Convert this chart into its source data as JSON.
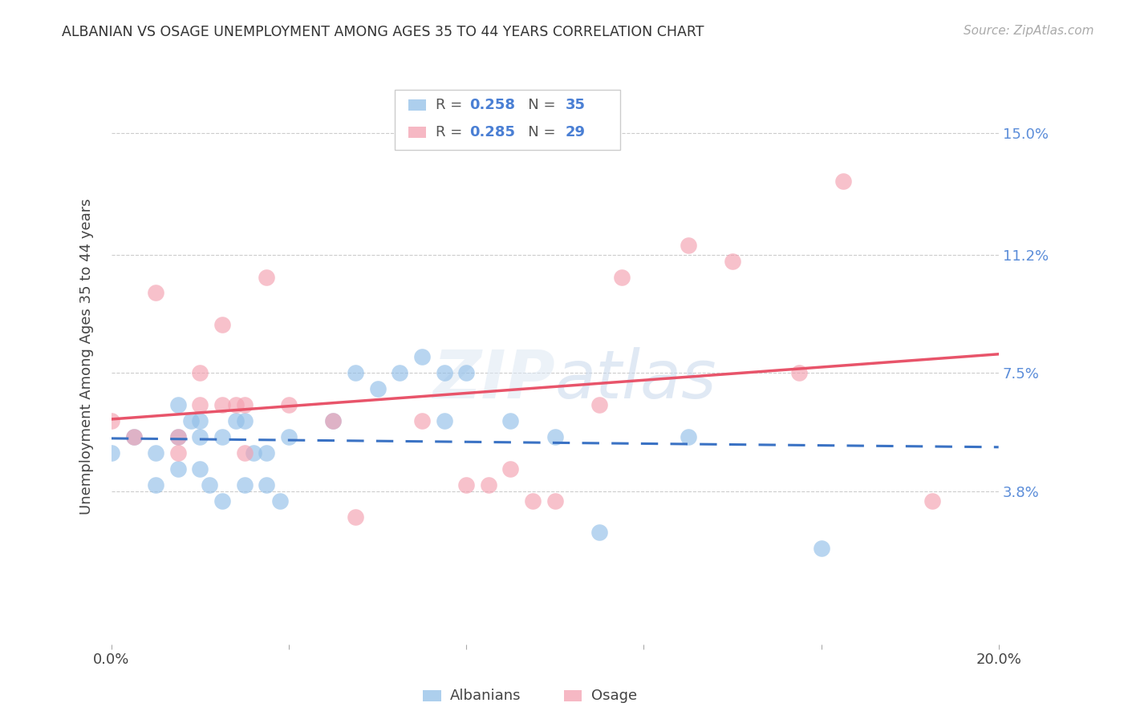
{
  "title": "ALBANIAN VS OSAGE UNEMPLOYMENT AMONG AGES 35 TO 44 YEARS CORRELATION CHART",
  "source": "Source: ZipAtlas.com",
  "ylabel": "Unemployment Among Ages 35 to 44 years",
  "xlim": [
    0.0,
    0.2
  ],
  "ylim": [
    -0.01,
    0.17
  ],
  "yticks": [
    0.038,
    0.075,
    0.112,
    0.15
  ],
  "ytick_labels": [
    "3.8%",
    "7.5%",
    "11.2%",
    "15.0%"
  ],
  "xticks": [
    0.0,
    0.04,
    0.08,
    0.12,
    0.16,
    0.2
  ],
  "xtick_labels": [
    "0.0%",
    "",
    "",
    "",
    "",
    "20.0%"
  ],
  "albanians_R": 0.258,
  "albanians_N": 35,
  "osage_R": 0.285,
  "osage_N": 29,
  "albanian_color": "#92bfe8",
  "osage_color": "#f4a0b0",
  "albanian_line_color": "#3a72c4",
  "osage_line_color": "#e8546a",
  "albanians_x": [
    0.0,
    0.005,
    0.01,
    0.01,
    0.015,
    0.015,
    0.015,
    0.018,
    0.02,
    0.02,
    0.02,
    0.022,
    0.025,
    0.025,
    0.028,
    0.03,
    0.03,
    0.032,
    0.035,
    0.035,
    0.038,
    0.04,
    0.05,
    0.055,
    0.06,
    0.065,
    0.07,
    0.075,
    0.075,
    0.08,
    0.09,
    0.1,
    0.11,
    0.13,
    0.16
  ],
  "albanians_y": [
    0.05,
    0.055,
    0.05,
    0.04,
    0.065,
    0.055,
    0.045,
    0.06,
    0.06,
    0.055,
    0.045,
    0.04,
    0.055,
    0.035,
    0.06,
    0.06,
    0.04,
    0.05,
    0.05,
    0.04,
    0.035,
    0.055,
    0.06,
    0.075,
    0.07,
    0.075,
    0.08,
    0.06,
    0.075,
    0.075,
    0.06,
    0.055,
    0.025,
    0.055,
    0.02
  ],
  "osage_x": [
    0.0,
    0.005,
    0.01,
    0.015,
    0.015,
    0.02,
    0.02,
    0.025,
    0.025,
    0.028,
    0.03,
    0.03,
    0.035,
    0.04,
    0.05,
    0.055,
    0.07,
    0.08,
    0.085,
    0.09,
    0.095,
    0.1,
    0.11,
    0.115,
    0.13,
    0.14,
    0.155,
    0.165,
    0.185
  ],
  "osage_y": [
    0.06,
    0.055,
    0.1,
    0.055,
    0.05,
    0.075,
    0.065,
    0.09,
    0.065,
    0.065,
    0.065,
    0.05,
    0.105,
    0.065,
    0.06,
    0.03,
    0.06,
    0.04,
    0.04,
    0.045,
    0.035,
    0.035,
    0.065,
    0.105,
    0.115,
    0.11,
    0.075,
    0.135,
    0.035
  ]
}
